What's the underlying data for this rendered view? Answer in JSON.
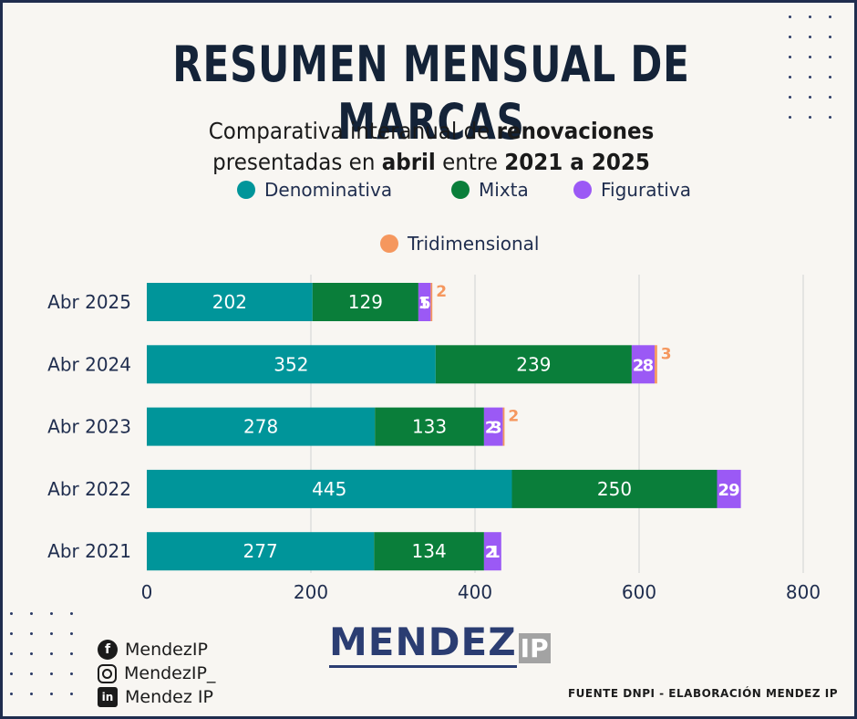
{
  "header": {
    "title": "RESUMEN MENSUAL DE MARCAS",
    "subtitle_line1": {
      "before": "Comparativa interanual de ",
      "bold": "renovaciones"
    },
    "subtitle_line2": {
      "before": "presentadas en ",
      "bold1": "abril",
      "mid": " entre ",
      "bold2": "2021 a 2025"
    }
  },
  "legend": [
    {
      "label": "Denominativa",
      "color": "#00959a"
    },
    {
      "label": "Mixta",
      "color": "#0a7e3a"
    },
    {
      "label": "Figurativa",
      "color": "#9b59f5"
    },
    {
      "label": "Tridimensional",
      "color": "#f5975e"
    }
  ],
  "chart_data": {
    "type": "bar",
    "orientation": "horizontal",
    "stacked": true,
    "categories": [
      "Abr 2025",
      "Abr 2024",
      "Abr 2023",
      "Abr 2022",
      "Abr 2021"
    ],
    "series": [
      {
        "name": "Denominativa",
        "color": "#00959a",
        "values": [
          202,
          352,
          278,
          445,
          277
        ]
      },
      {
        "name": "Mixta",
        "color": "#0a7e3a",
        "values": [
          129,
          239,
          133,
          250,
          134
        ]
      },
      {
        "name": "Figurativa",
        "color": "#9b59f5",
        "values": [
          15,
          28,
          23,
          29,
          21
        ]
      },
      {
        "name": "Tridimensional",
        "color": "#f5975e",
        "values": [
          2,
          3,
          2,
          0,
          0
        ]
      }
    ],
    "xlim": [
      0,
      800
    ],
    "xticks": [
      0,
      200,
      400,
      600,
      800
    ],
    "grid": true,
    "legend_position": "top",
    "title": "",
    "xlabel": "",
    "ylabel": ""
  },
  "footer": {
    "logo_main": "MENDEZ",
    "logo_suffix": "IP",
    "social": [
      {
        "icon": "facebook-icon",
        "letter": "f",
        "label": "MendezIP"
      },
      {
        "icon": "instagram-icon",
        "letter": "",
        "label": "MendezIP_"
      },
      {
        "icon": "linkedin-icon",
        "letter": "in",
        "label": "Mendez IP"
      }
    ],
    "source": "FUENTE DNPI - ELABORACIÓN MENDEZ IP"
  }
}
